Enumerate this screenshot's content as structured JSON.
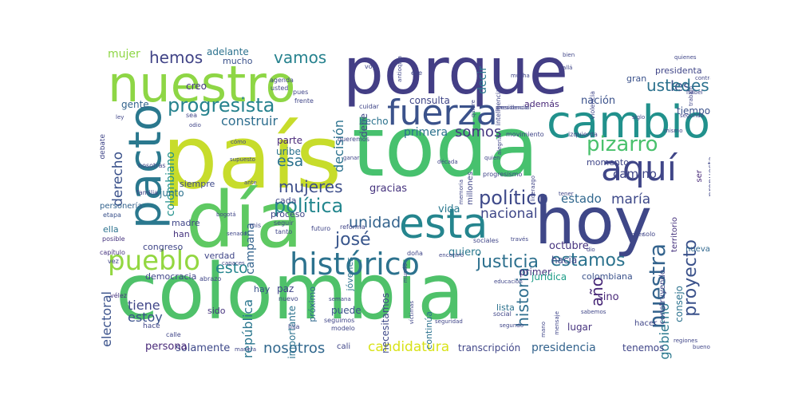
{
  "word_cloud": {
    "background": "#ffffff",
    "words": [
      {
        "text": "colombia",
        "color": "#4fc16a"
      },
      {
        "text": "país",
        "color": "#c7dc2b"
      },
      {
        "text": "toda",
        "color": "#47c16e"
      },
      {
        "text": "porque",
        "color": "#433e85"
      },
      {
        "text": "hoy",
        "color": "#3f4788"
      },
      {
        "text": "día",
        "color": "#5ec962"
      },
      {
        "text": "nuestro",
        "color": "#8ed645"
      },
      {
        "text": "pacto",
        "color": "#2a788e"
      },
      {
        "text": "esta",
        "color": "#25858e"
      },
      {
        "text": "cambio",
        "color": "#21918c"
      },
      {
        "text": "fuerza",
        "color": "#3b528b"
      },
      {
        "text": "aquí",
        "color": "#404688"
      },
      {
        "text": "histórico",
        "color": "#2c728e"
      },
      {
        "text": "pueblo",
        "color": "#93d741"
      },
      {
        "text": "política",
        "color": "#24878e"
      },
      {
        "text": "progresista",
        "color": "#26828e"
      },
      {
        "text": "nuestra",
        "color": "#33638d"
      },
      {
        "text": "pizarro",
        "color": "#4ac16d"
      },
      {
        "text": "político",
        "color": "#3e4989"
      },
      {
        "text": "justicia",
        "color": "#2d708e"
      },
      {
        "text": "estamos",
        "color": "#2c738e"
      },
      {
        "text": "proyecto",
        "color": "#3b528b"
      },
      {
        "text": "candidatura",
        "color": "#d8e219"
      },
      {
        "text": "historia",
        "color": "#2e6e8e"
      },
      {
        "text": "mujeres",
        "color": "#3d4e8a"
      },
      {
        "text": "josé",
        "color": "#39568c"
      },
      {
        "text": "nosotros",
        "color": "#31688e"
      },
      {
        "text": "república",
        "color": "#2a768e"
      },
      {
        "text": "hemos",
        "color": "#414487"
      },
      {
        "text": "vamos",
        "color": "#26828e"
      },
      {
        "text": "les",
        "color": "#3b528b"
      },
      {
        "text": "ustedes",
        "color": "#2c728e"
      },
      {
        "text": "unidad",
        "color": "#33638d"
      },
      {
        "text": "nacional",
        "color": "#3f4788"
      },
      {
        "text": "somos",
        "color": "#453781"
      },
      {
        "text": "esto",
        "color": "#25858e"
      },
      {
        "text": "esa",
        "color": "#2c728e"
      },
      {
        "text": "año",
        "color": "#482878"
      },
      {
        "text": "decisión",
        "color": "#2c728e"
      },
      {
        "text": "construir",
        "color": "#2e6e8e"
      },
      {
        "text": "derecho",
        "color": "#3b528b"
      },
      {
        "text": "colombiano",
        "color": "#21918c"
      },
      {
        "text": "gobierno",
        "color": "#2a788e"
      },
      {
        "text": "estado",
        "color": "#31688e"
      },
      {
        "text": "maría",
        "color": "#3e4989"
      },
      {
        "text": "camino",
        "color": "#404688"
      },
      {
        "text": "tiene",
        "color": "#404688"
      },
      {
        "text": "estoy",
        "color": "#3b528b"
      },
      {
        "text": "electoral",
        "color": "#3b528b"
      },
      {
        "text": "campaña",
        "color": "#33638d"
      },
      {
        "text": "gracias",
        "color": "#46337e"
      },
      {
        "text": "presidencia",
        "color": "#33638d"
      },
      {
        "text": "jóvenes",
        "color": "#2c728e"
      },
      {
        "text": "importante",
        "color": "#2c728e"
      },
      {
        "text": "necesitamos",
        "color": "#3e4989"
      },
      {
        "text": "decir",
        "color": "#2a788e"
      },
      {
        "text": "debe",
        "color": "#404688"
      },
      {
        "text": "consulta",
        "color": "#404688"
      },
      {
        "text": "primera",
        "color": "#2c728e"
      },
      {
        "text": "nación",
        "color": "#3b528b"
      },
      {
        "text": "además",
        "color": "#482878"
      },
      {
        "text": "vida",
        "color": "#2a788e"
      },
      {
        "text": "quiero",
        "color": "#2a788e"
      },
      {
        "text": "octubre",
        "color": "#46337e"
      },
      {
        "text": "hacia",
        "color": "#404688"
      },
      {
        "text": "primer",
        "color": "#46337e"
      },
      {
        "text": "jurídica",
        "color": "#1f9e89"
      },
      {
        "text": "colombiana",
        "color": "#3b528b"
      },
      {
        "text": "sino",
        "color": "#482878"
      },
      {
        "text": "consejo",
        "color": "#2c728e"
      },
      {
        "text": "lugar",
        "color": "#46337e"
      },
      {
        "text": "solamente",
        "color": "#3e4989"
      },
      {
        "text": "persona",
        "color": "#482878"
      },
      {
        "text": "tenemos",
        "color": "#404688"
      },
      {
        "text": "transcripción",
        "color": "#404688"
      },
      {
        "text": "mujer",
        "color": "#8ed645"
      },
      {
        "text": "adelante",
        "color": "#2c728e"
      },
      {
        "text": "mucho",
        "color": "#3b528b"
      },
      {
        "text": "creo",
        "color": "#453781"
      },
      {
        "text": "gente",
        "color": "#33638d"
      },
      {
        "text": "hecho",
        "color": "#2c728e"
      },
      {
        "text": "parte",
        "color": "#482878"
      },
      {
        "text": "uribe",
        "color": "#2c728e"
      },
      {
        "text": "cada",
        "color": "#3e4989"
      },
      {
        "text": "proceso",
        "color": "#404688"
      },
      {
        "text": "junto",
        "color": "#2c728e"
      },
      {
        "text": "siempre",
        "color": "#3e4989"
      },
      {
        "text": "madre",
        "color": "#404688"
      },
      {
        "text": "han",
        "color": "#46337e"
      },
      {
        "text": "congreso",
        "color": "#404688"
      },
      {
        "text": "verdad",
        "color": "#404688"
      },
      {
        "text": "democracia",
        "color": "#404688"
      },
      {
        "text": "paz",
        "color": "#404688"
      },
      {
        "text": "hay",
        "color": "#3b528b"
      },
      {
        "text": "próximo",
        "color": "#31688e"
      },
      {
        "text": "sido",
        "color": "#46337e"
      },
      {
        "text": "puede",
        "color": "#3b528b"
      },
      {
        "text": "continúa",
        "color": "#2c728e"
      },
      {
        "text": "lista",
        "color": "#2c728e"
      },
      {
        "text": "momento",
        "color": "#404688"
      },
      {
        "text": "presidenta",
        "color": "#404688"
      },
      {
        "text": "gran",
        "color": "#3b528b"
      },
      {
        "text": "tiempo",
        "color": "#3b528b"
      },
      {
        "text": "nueva",
        "color": "#31688e"
      },
      {
        "text": "construyendo",
        "color": "#404688"
      },
      {
        "text": "hacer",
        "color": "#404688"
      },
      {
        "text": "ella",
        "color": "#2c728e"
      },
      {
        "text": "ser",
        "color": "#482878"
      },
      {
        "text": "territorio",
        "color": "#46337e"
      },
      {
        "text": "propuesta",
        "color": "#404688"
      },
      {
        "text": "cali",
        "color": "#404688"
      },
      {
        "text": "debate",
        "color": "#404688"
      },
      {
        "text": "nosotras",
        "color": "#404688"
      },
      {
        "text": "personería",
        "color": "#33638d"
      },
      {
        "text": "etapa",
        "color": "#3b528b"
      },
      {
        "text": "familia",
        "color": "#404688"
      },
      {
        "text": "posible",
        "color": "#46337e"
      },
      {
        "text": "capítulo",
        "color": "#46337e"
      },
      {
        "text": "vélez",
        "color": "#46337e"
      },
      {
        "text": "abrazo",
        "color": "#404688"
      },
      {
        "text": "nuevo",
        "color": "#404688"
      },
      {
        "text": "mis",
        "color": "#404688"
      },
      {
        "text": "tanto",
        "color": "#404688"
      },
      {
        "text": "seguir",
        "color": "#404688"
      },
      {
        "text": "queremos",
        "color": "#404688"
      },
      {
        "text": "cómo",
        "color": "#404688"
      },
      {
        "text": "odio",
        "color": "#404688"
      },
      {
        "text": "supuesto",
        "color": "#404688"
      },
      {
        "text": "agenda",
        "color": "#404688"
      },
      {
        "text": "usted",
        "color": "#404688"
      },
      {
        "text": "pues",
        "color": "#404688"
      },
      {
        "text": "frente",
        "color": "#404688"
      },
      {
        "text": "cuidar",
        "color": "#404688"
      },
      {
        "text": "ese",
        "color": "#404688"
      },
      {
        "text": "voy",
        "color": "#404688"
      },
      {
        "text": "antioquia",
        "color": "#404688"
      },
      {
        "text": "quiere",
        "color": "#404688"
      },
      {
        "text": "mucha",
        "color": "#404688"
      },
      {
        "text": "allá",
        "color": "#404688"
      },
      {
        "text": "bien",
        "color": "#404688"
      },
      {
        "text": "violencia",
        "color": "#404688"
      },
      {
        "text": "isabel",
        "color": "#404688"
      },
      {
        "text": "quienes",
        "color": "#404688"
      },
      {
        "text": "contra",
        "color": "#404688"
      },
      {
        "text": "segunda",
        "color": "#404688"
      },
      {
        "text": "siglo",
        "color": "#404688"
      },
      {
        "text": "movimiento",
        "color": "#404688"
      },
      {
        "text": "izquierda",
        "color": "#404688"
      },
      {
        "text": "millones",
        "color": "#404688"
      },
      {
        "text": "alegría",
        "color": "#404688"
      },
      {
        "text": "quien",
        "color": "#404688"
      },
      {
        "text": "década",
        "color": "#404688"
      },
      {
        "text": "ganar",
        "color": "#404688"
      },
      {
        "text": "memoria",
        "color": "#404688"
      },
      {
        "text": "progresismo",
        "color": "#404688"
      },
      {
        "text": "liderazgo",
        "color": "#404688"
      },
      {
        "text": "tener",
        "color": "#404688"
      },
      {
        "text": "poder",
        "color": "#404688"
      },
      {
        "text": "solo",
        "color": "#404688"
      },
      {
        "text": "dio",
        "color": "#404688"
      },
      {
        "text": "sociales",
        "color": "#404688"
      },
      {
        "text": "través",
        "color": "#404688"
      },
      {
        "text": "encontró",
        "color": "#404688"
      },
      {
        "text": "mundo",
        "color": "#404688"
      },
      {
        "text": "reforma",
        "color": "#404688"
      },
      {
        "text": "futuro",
        "color": "#404688"
      },
      {
        "text": "bogotá",
        "color": "#404688"
      },
      {
        "text": "ante",
        "color": "#404688"
      },
      {
        "text": "senado",
        "color": "#404688"
      },
      {
        "text": "capaces",
        "color": "#404688"
      },
      {
        "text": "semana",
        "color": "#404688"
      },
      {
        "text": "mensaje",
        "color": "#404688"
      },
      {
        "text": "doña",
        "color": "#404688"
      },
      {
        "text": "hija",
        "color": "#404688"
      },
      {
        "text": "seguimos",
        "color": "#404688"
      },
      {
        "text": "modelo",
        "color": "#404688"
      },
      {
        "text": "social",
        "color": "#404688"
      },
      {
        "text": "seguridad",
        "color": "#404688"
      },
      {
        "text": "víctimas",
        "color": "#404688"
      },
      {
        "text": "mano",
        "color": "#404688"
      },
      {
        "text": "sabemos",
        "color": "#404688"
      },
      {
        "text": "regiones",
        "color": "#404688"
      },
      {
        "text": "bueno",
        "color": "#404688"
      },
      {
        "text": "calle",
        "color": "#404688"
      },
      {
        "text": "hace",
        "color": "#404688"
      },
      {
        "text": "ley",
        "color": "#404688"
      },
      {
        "text": "vez",
        "color": "#404688"
      },
      {
        "text": "sea",
        "color": "#404688"
      },
      {
        "text": "mismo",
        "color": "#404688"
      },
      {
        "text": "inteligencia",
        "color": "#404688"
      },
      {
        "text": "trabajo",
        "color": "#404688"
      },
      {
        "text": "manera",
        "color": "#404688"
      },
      {
        "text": "presidencial",
        "color": "#404688"
      },
      {
        "text": "presidencia",
        "color": "#404688"
      },
      {
        "text": "educación",
        "color": "#404688"
      },
      {
        "text": "segundo",
        "color": "#404688"
      }
    ]
  }
}
